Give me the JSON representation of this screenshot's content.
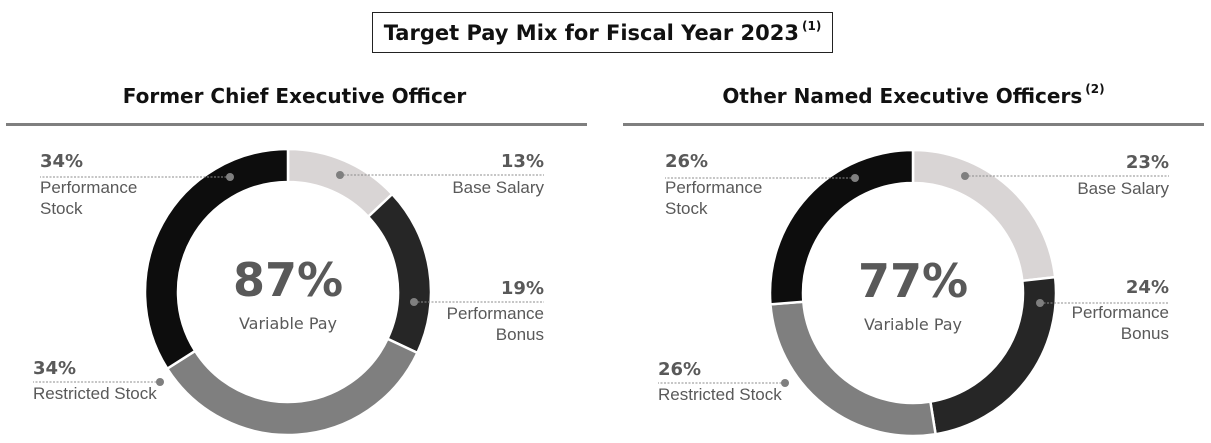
{
  "title": {
    "text": "Target Pay Mix for Fiscal Year 2023",
    "footnote": "(1)"
  },
  "colors": {
    "base_salary": "#d9d5d5",
    "performance_bonus": "#262626",
    "restricted_stock": "#7f7f7f",
    "performance_stock": "#0d0d0d",
    "rule": "#7f7f7f",
    "text": "#595959"
  },
  "chart_data": [
    {
      "type": "pie",
      "title": "Former Chief Executive Officer",
      "title_footnote": "",
      "center_value": "87%",
      "center_label": "Variable Pay",
      "categories": [
        "Base Salary",
        "Performance Bonus",
        "Restricted Stock",
        "Performance Stock"
      ],
      "values": [
        13,
        19,
        34,
        34
      ],
      "labels": {
        "base_salary": {
          "pct": "13%",
          "text": "Base Salary"
        },
        "performance_bonus": {
          "pct": "19%",
          "text": "Performance\nBonus"
        },
        "restricted_stock": {
          "pct": "34%",
          "text": "Restricted Stock"
        },
        "performance_stock": {
          "pct": "34%",
          "text": "Performance\nStock"
        }
      }
    },
    {
      "type": "pie",
      "title": "Other Named Executive Officers",
      "title_footnote": "(2)",
      "center_value": "77%",
      "center_label": "Variable Pay",
      "categories": [
        "Base Salary",
        "Performance Bonus",
        "Restricted Stock",
        "Performance Stock"
      ],
      "values": [
        23,
        24,
        26,
        26
      ],
      "labels": {
        "base_salary": {
          "pct": "23%",
          "text": "Base Salary"
        },
        "performance_bonus": {
          "pct": "24%",
          "text": "Performance\nBonus"
        },
        "restricted_stock": {
          "pct": "26%",
          "text": "Restricted Stock"
        },
        "performance_stock": {
          "pct": "26%",
          "text": "Performance\nStock"
        }
      }
    }
  ]
}
